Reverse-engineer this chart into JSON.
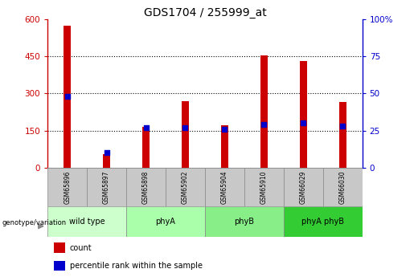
{
  "title": "GDS1704 / 255999_at",
  "samples": [
    "GSM65896",
    "GSM65897",
    "GSM65898",
    "GSM65902",
    "GSM65904",
    "GSM65910",
    "GSM66029",
    "GSM66030"
  ],
  "counts": [
    575,
    55,
    165,
    270,
    170,
    455,
    430,
    265
  ],
  "percentile_ranks": [
    48,
    10,
    27,
    27,
    26,
    29,
    30,
    28
  ],
  "groups": [
    {
      "label": "wild type",
      "start": 0,
      "end": 2,
      "color": "#ccffcc"
    },
    {
      "label": "phyA",
      "start": 2,
      "end": 4,
      "color": "#aaffaa"
    },
    {
      "label": "phyB",
      "start": 4,
      "end": 6,
      "color": "#88ee88"
    },
    {
      "label": "phyA phyB",
      "start": 6,
      "end": 8,
      "color": "#33cc33"
    }
  ],
  "ylim_left": [
    0,
    600
  ],
  "ylim_right": [
    0,
    100
  ],
  "yticks_left": [
    0,
    150,
    300,
    450,
    600
  ],
  "yticks_right": [
    0,
    25,
    50,
    75,
    100
  ],
  "ytick_labels_right": [
    "0",
    "25",
    "50",
    "75",
    "100%"
  ],
  "bar_color": "#cc0000",
  "dot_color": "#0000cc",
  "grid_color": "#000000",
  "background_color": "#ffffff",
  "left_axis_color": "#cc0000",
  "right_axis_color": "#0000cc",
  "bar_width": 0.18,
  "dot_size": 18,
  "sample_box_color": "#c8c8c8",
  "legend_square_size": 0.012
}
